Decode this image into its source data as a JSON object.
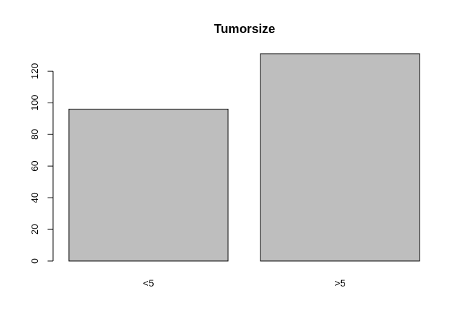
{
  "chart_data": {
    "type": "bar",
    "title": "Tumorsize",
    "xlabel": "",
    "ylabel": "",
    "categories": [
      "<5",
      ">5"
    ],
    "values": [
      96,
      131
    ],
    "ylim": [
      0,
      131
    ],
    "yticks": [
      0,
      20,
      40,
      60,
      80,
      100,
      120
    ],
    "ytick_labels": [
      "0",
      "20",
      "40",
      "60",
      "80",
      "100",
      "120"
    ],
    "bar_color": "#bebebe",
    "bar_border_color": "#000000",
    "axis_color": "#000000",
    "grid": false,
    "legend": "none"
  }
}
